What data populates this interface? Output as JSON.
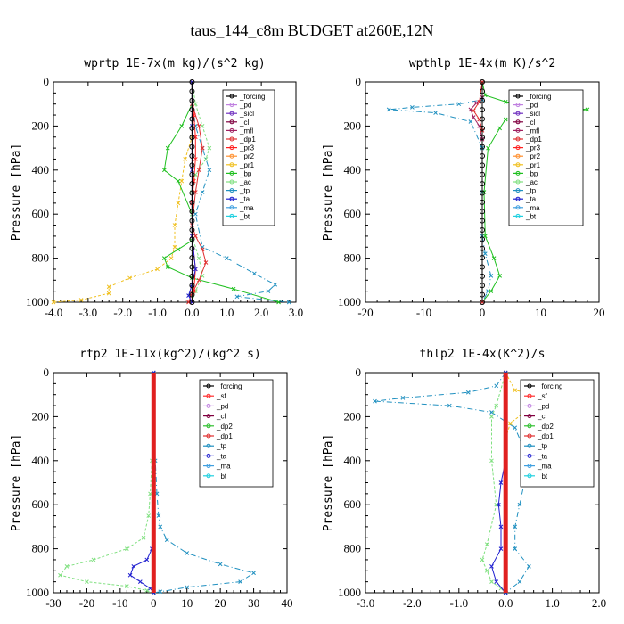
{
  "title": "taus_144_c8m  BUDGET at260E,12N",
  "colors": {
    "forcing": "#000000",
    "pd": "#c080e0",
    "sicl": "#7030c0",
    "cl": "#800040",
    "mfl": "#a02060",
    "dp1": "#e03030",
    "dp2": "#30c030",
    "pr3": "#ff2020",
    "pr2": "#ff9030",
    "pr1": "#f0c020",
    "bp": "#20c020",
    "ac": "#80e080",
    "tp": "#2090c0",
    "ta": "#2020d0",
    "ma": "#40a0e0",
    "bt": "#20d0e0",
    "sf": "#ff3030",
    "thick": "#e02020"
  },
  "chart_data": [
    {
      "type": "line",
      "title": "wprtp  1E-7x(m kg)/(s^2 kg)",
      "ylabel": "Pressure [hPa]",
      "xlim": [
        -4.0,
        3.0
      ],
      "ylim": [
        1000,
        0
      ],
      "xticks": [
        "-4.0",
        "-3.0",
        "-2.0",
        "-1.0",
        "0.0",
        "1.0",
        "2.0",
        "3.0"
      ],
      "yticks": [
        "0",
        "200",
        "400",
        "600",
        "800",
        "1000"
      ],
      "legend": [
        "_forcing",
        "_pd",
        "_sicl",
        "_cl",
        "_mfl",
        "_dp1",
        "_pr3",
        "_pr2",
        "_pr1",
        "_bp",
        "_ac",
        "_tp",
        "_ta",
        "_ma",
        "_bt"
      ],
      "series": [
        {
          "name": "_pr1",
          "color": "pr1",
          "x": [
            0,
            0,
            0,
            -0.2,
            -0.3,
            -0.4,
            -0.5,
            -0.5,
            -0.6,
            -1.0,
            -1.8,
            -2.4,
            -2.4,
            -3.2,
            -4.0
          ],
          "y": [
            0,
            100,
            250,
            350,
            450,
            550,
            650,
            750,
            800,
            850,
            890,
            930,
            960,
            990,
            1000
          ]
        },
        {
          "name": "_bp",
          "color": "bp",
          "x": [
            0,
            0,
            -0.3,
            -0.7,
            -0.8,
            -0.4,
            0,
            0,
            -0.4,
            -0.8,
            -0.7,
            0,
            1.2,
            2.5
          ],
          "y": [
            0,
            100,
            200,
            300,
            400,
            450,
            600,
            720,
            760,
            800,
            840,
            890,
            940,
            1000
          ]
        },
        {
          "name": "_ac",
          "color": "ac",
          "x": [
            0,
            0.1,
            0.3,
            0.5,
            0.4,
            0.1,
            0,
            0,
            0,
            0.2,
            0.3,
            0.1,
            0
          ],
          "y": [
            0,
            100,
            200,
            300,
            350,
            420,
            500,
            600,
            700,
            800,
            880,
            950,
            1000
          ]
        },
        {
          "name": "_tp",
          "color": "tp",
          "x": [
            0,
            0,
            0.1,
            0.3,
            0.5,
            0.3,
            0.1,
            0.3,
            1.0,
            1.8,
            2.4,
            2.2,
            1.3,
            2.8
          ],
          "y": [
            0,
            100,
            200,
            300,
            400,
            500,
            600,
            750,
            800,
            870,
            920,
            950,
            975,
            1000
          ]
        },
        {
          "name": "_dp1",
          "color": "dp1",
          "x": [
            0,
            0,
            0.2,
            0.3,
            0.2,
            0.1,
            0,
            0.1,
            0.3,
            0.4,
            0.2,
            0,
            -0.1
          ],
          "y": [
            0,
            100,
            200,
            300,
            400,
            500,
            650,
            700,
            760,
            820,
            900,
            960,
            1000
          ]
        },
        {
          "name": "_pr3",
          "color": "pr3",
          "x": [
            0,
            0.05,
            0.1,
            0.1,
            0.05,
            0,
            0,
            0.1,
            0.05,
            0
          ],
          "y": [
            0,
            150,
            250,
            350,
            450,
            550,
            700,
            850,
            950,
            1000
          ]
        },
        {
          "name": "_ta",
          "color": "ta",
          "x": [
            0,
            0,
            0,
            0,
            0.1,
            0,
            -0.1,
            0
          ],
          "y": [
            0,
            200,
            400,
            700,
            850,
            920,
            970,
            1000
          ]
        },
        {
          "name": "_forcing",
          "color": "forcing",
          "x": [
            0,
            0,
            0,
            0,
            0,
            0,
            0,
            0,
            0,
            0,
            0,
            0,
            0,
            0,
            0,
            0,
            0,
            0,
            0,
            0,
            0,
            0,
            0,
            0,
            0
          ],
          "y": [
            0,
            42,
            84,
            126,
            168,
            210,
            252,
            294,
            336,
            378,
            420,
            462,
            504,
            546,
            588,
            630,
            672,
            714,
            756,
            798,
            840,
            882,
            924,
            966,
            1000
          ]
        }
      ]
    },
    {
      "type": "line",
      "title": "wpthlp  1E-4x(m K)/s^2",
      "ylabel": "Pressure [hPa]",
      "xlim": [
        -20,
        20
      ],
      "ylim": [
        1000,
        0
      ],
      "xticks": [
        "-20",
        "-10",
        "0",
        "10",
        "20"
      ],
      "yticks": [
        "0",
        "200",
        "400",
        "600",
        "800",
        "1000"
      ],
      "legend": [
        "_forcing",
        "_pd",
        "_sicl",
        "_cl",
        "_mfl",
        "_dp1",
        "_pr3",
        "_pr2",
        "_pr1",
        "_bp",
        "_ac",
        "_tp",
        "_ta",
        "_ma",
        "_bt"
      ],
      "series": [
        {
          "name": "_tp",
          "color": "tp",
          "x": [
            0,
            0,
            -4,
            -12,
            -16,
            -8,
            -2,
            0,
            0,
            0,
            0.5,
            1.5,
            1.0,
            0
          ],
          "y": [
            0,
            80,
            100,
            115,
            125,
            140,
            180,
            300,
            500,
            700,
            780,
            880,
            950,
            1000
          ]
        },
        {
          "name": "_bp",
          "color": "bp",
          "x": [
            0,
            0.5,
            4,
            12,
            18,
            10,
            4,
            3,
            1,
            0.3,
            0.5,
            2,
            3,
            1.5,
            0
          ],
          "y": [
            0,
            60,
            90,
            110,
            125,
            145,
            170,
            210,
            300,
            500,
            700,
            800,
            880,
            950,
            1000
          ]
        },
        {
          "name": "_mfl",
          "color": "mfl",
          "x": [
            0,
            0,
            -1,
            -2,
            -1.5,
            -0.5,
            0,
            0
          ],
          "y": [
            0,
            70,
            95,
            125,
            160,
            200,
            260,
            1000
          ]
        },
        {
          "name": "_dp1",
          "color": "dp1",
          "x": [
            0,
            -0.5,
            -1.5,
            -0.5,
            0,
            0
          ],
          "y": [
            0,
            90,
            130,
            170,
            220,
            1000
          ]
        },
        {
          "name": "_forcing",
          "color": "forcing",
          "x": [
            0,
            0,
            0,
            0,
            0,
            0,
            0,
            0,
            0,
            0,
            0,
            0,
            0,
            0,
            0,
            0,
            0,
            0,
            0,
            0,
            0,
            0,
            0,
            0,
            0
          ],
          "y": [
            0,
            42,
            84,
            126,
            168,
            210,
            252,
            294,
            336,
            378,
            420,
            462,
            504,
            546,
            588,
            630,
            672,
            714,
            756,
            798,
            840,
            882,
            924,
            966,
            1000
          ]
        }
      ]
    },
    {
      "type": "line",
      "title": "rtp2  1E-11x(kg^2)/(kg^2 s)",
      "ylabel": "Pressure [hPa]",
      "xlim": [
        -30,
        40
      ],
      "ylim": [
        1000,
        0
      ],
      "xticks": [
        "-30",
        "-20",
        "-10",
        "0",
        "10",
        "20",
        "30",
        "40"
      ],
      "yticks": [
        "0",
        "200",
        "400",
        "600",
        "800",
        "1000"
      ],
      "legend": [
        "_forcing",
        "_sf",
        "_pd",
        "_cl",
        "_dp2",
        "_dp1",
        "_tp",
        "_ta",
        "_ma",
        "_bt"
      ],
      "series": [
        {
          "name": "_dp1",
          "color": "ac",
          "x": [
            0,
            0,
            -0.5,
            -1,
            -1.5,
            -3,
            -8,
            -18,
            -26,
            -28,
            -20,
            -8,
            -2,
            0
          ],
          "y": [
            0,
            200,
            400,
            550,
            650,
            750,
            800,
            850,
            880,
            920,
            950,
            970,
            990,
            1000
          ]
        },
        {
          "name": "_tp",
          "color": "tp",
          "x": [
            0,
            0,
            0.5,
            1,
            1.5,
            2,
            4,
            10,
            20,
            30,
            26,
            10,
            2,
            0
          ],
          "y": [
            0,
            200,
            400,
            550,
            650,
            700,
            760,
            820,
            870,
            910,
            950,
            975,
            995,
            1000
          ]
        },
        {
          "name": "_ta",
          "color": "ta",
          "x": [
            0,
            0,
            0,
            -0.5,
            -2,
            -6,
            -7,
            -4,
            -1,
            0
          ],
          "y": [
            0,
            400,
            700,
            800,
            850,
            880,
            920,
            950,
            980,
            1000
          ]
        },
        {
          "name": "_forcing",
          "color": "thick",
          "x": [
            0,
            0,
            0,
            0,
            0,
            0,
            0,
            0,
            0,
            0,
            0,
            0,
            0,
            0,
            0,
            0,
            0,
            0,
            0,
            0,
            0,
            0,
            0,
            0,
            0
          ],
          "y": [
            0,
            42,
            84,
            126,
            168,
            210,
            252,
            294,
            336,
            378,
            420,
            462,
            504,
            546,
            588,
            630,
            672,
            714,
            756,
            798,
            840,
            882,
            924,
            966,
            1000
          ]
        }
      ]
    },
    {
      "type": "line",
      "title": "thlp2  1E-4x(K^2)/s",
      "ylabel": "Pressure [hPa]",
      "xlim": [
        -3.0,
        2.0
      ],
      "ylim": [
        1000,
        0
      ],
      "xticks": [
        "-3.0",
        "-2.0",
        "-1.0",
        "0.0",
        "1.0",
        "2.0"
      ],
      "yticks": [
        "0",
        "200",
        "400",
        "600",
        "800",
        "1000"
      ],
      "legend": [
        "_forcing",
        "_sf",
        "_pd",
        "_cl",
        "_dp2",
        "_dp1",
        "_tp",
        "_ta",
        "_ma",
        "_bt"
      ],
      "series": [
        {
          "name": "_tp",
          "color": "tp",
          "x": [
            0,
            -0.2,
            -0.8,
            -2.2,
            -2.8,
            -1.2,
            -0.3,
            0.2,
            0.4,
            0.4,
            0.3,
            0.2,
            0.2,
            0.5,
            0.3,
            0
          ],
          "y": [
            0,
            60,
            90,
            115,
            130,
            150,
            180,
            250,
            350,
            500,
            600,
            700,
            800,
            880,
            950,
            1000
          ]
        },
        {
          "name": "_pd",
          "color": "pr1",
          "x": [
            0,
            0.2,
            0.8,
            1.6,
            1.0,
            0.4,
            0.1,
            0
          ],
          "y": [
            0,
            80,
            105,
            125,
            150,
            180,
            230,
            300
          ]
        },
        {
          "name": "_dp1",
          "color": "ac",
          "x": [
            0,
            -0.2,
            -0.3,
            -0.3,
            -0.2,
            -0.4,
            -0.5,
            -0.4,
            -0.3,
            -0.1,
            0
          ],
          "y": [
            0,
            150,
            200,
            400,
            600,
            780,
            850,
            900,
            950,
            980,
            1000
          ]
        },
        {
          "name": "_ta",
          "color": "ta",
          "x": [
            0,
            0,
            -0.1,
            -0.15,
            -0.1,
            -0.1,
            -0.3,
            -0.2,
            0
          ],
          "y": [
            0,
            400,
            500,
            600,
            700,
            800,
            880,
            950,
            1000
          ]
        },
        {
          "name": "_forcing",
          "color": "thick",
          "x": [
            0,
            0,
            0,
            0,
            0,
            0,
            0,
            0,
            0,
            0,
            0,
            0,
            0,
            0,
            0,
            0,
            0,
            0,
            0,
            0,
            0,
            0,
            0,
            0,
            0
          ],
          "y": [
            0,
            42,
            84,
            126,
            168,
            210,
            252,
            294,
            336,
            378,
            420,
            462,
            504,
            546,
            588,
            630,
            672,
            714,
            756,
            798,
            840,
            882,
            924,
            966,
            1000
          ]
        }
      ]
    }
  ]
}
